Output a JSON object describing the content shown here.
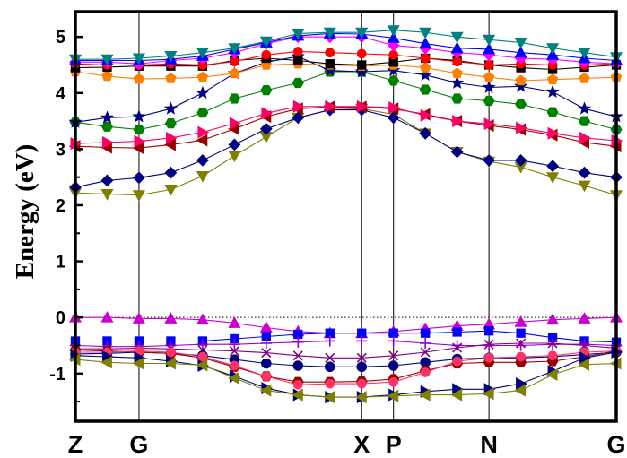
{
  "chart_data": {
    "type": "line",
    "ylabel": "Energy (eV)",
    "ylim": [
      -1.85,
      5.45
    ],
    "yticks": [
      -1,
      0,
      1,
      2,
      3,
      4,
      5
    ],
    "ytick_labels": [
      "-1",
      "0",
      "1",
      "2",
      "3",
      "4",
      "5"
    ],
    "k_points": [
      0,
      1,
      2,
      3,
      4,
      5,
      6,
      7,
      8,
      9,
      10,
      11,
      12,
      13,
      14,
      15,
      16,
      17
    ],
    "high_symmetry_points": [
      {
        "label": "Z",
        "k": 0
      },
      {
        "label": "G",
        "k": 2
      },
      {
        "label": "X",
        "k": 9
      },
      {
        "label": "P",
        "k": 10
      },
      {
        "label": "N",
        "k": 13
      },
      {
        "label": "G",
        "k": 17
      }
    ],
    "fermi_level": 0,
    "series": [
      {
        "marker": "tri-down",
        "color": "#808000",
        "values": [
          2.22,
          2.2,
          2.18,
          2.28,
          2.52,
          2.88,
          3.22,
          3.56,
          3.7,
          3.72,
          3.62,
          3.28,
          2.95,
          2.78,
          2.68,
          2.5,
          2.35,
          2.18
        ]
      },
      {
        "marker": "diamond",
        "color": "#000080",
        "values": [
          2.32,
          2.44,
          2.49,
          2.58,
          2.8,
          3.08,
          3.36,
          3.56,
          3.7,
          3.7,
          3.56,
          3.28,
          2.95,
          2.8,
          2.8,
          2.7,
          2.58,
          2.5
        ]
      },
      {
        "marker": "tri-left",
        "color": "#990000",
        "values": [
          3.05,
          3.03,
          3.02,
          3.08,
          3.16,
          3.36,
          3.58,
          3.72,
          3.75,
          3.75,
          3.72,
          3.62,
          3.5,
          3.42,
          3.35,
          3.25,
          3.12,
          3.05
        ]
      },
      {
        "marker": "tri-right",
        "color": "#ff0066",
        "values": [
          3.1,
          3.12,
          3.14,
          3.2,
          3.3,
          3.46,
          3.64,
          3.76,
          3.76,
          3.76,
          3.74,
          3.6,
          3.5,
          3.45,
          3.38,
          3.28,
          3.2,
          3.15
        ]
      },
      {
        "marker": "hexagon",
        "color": "#008000",
        "values": [
          3.48,
          3.4,
          3.35,
          3.46,
          3.65,
          3.9,
          4.05,
          4.18,
          4.38,
          4.38,
          4.22,
          4.06,
          3.9,
          3.86,
          3.8,
          3.66,
          3.5,
          3.35
        ]
      },
      {
        "marker": "star",
        "color": "#000080",
        "values": [
          3.48,
          3.56,
          3.58,
          3.72,
          4.0,
          4.35,
          4.55,
          4.65,
          4.4,
          4.38,
          4.4,
          4.32,
          4.18,
          4.1,
          4.12,
          4.02,
          3.72,
          3.58
        ]
      },
      {
        "marker": "pentagon",
        "color": "#ff8000",
        "values": [
          4.38,
          4.3,
          4.25,
          4.26,
          4.28,
          4.35,
          4.5,
          4.52,
          4.5,
          4.48,
          4.5,
          4.45,
          4.35,
          4.28,
          4.22,
          4.24,
          4.26,
          4.28
        ]
      },
      {
        "marker": "square",
        "color": "#000000",
        "values": [
          4.45,
          4.46,
          4.48,
          4.48,
          4.48,
          4.58,
          4.62,
          4.58,
          4.52,
          4.5,
          4.55,
          4.62,
          4.58,
          4.5,
          4.45,
          4.42,
          4.46,
          4.5
        ]
      },
      {
        "marker": "circle",
        "color": "#ff0000",
        "values": [
          4.52,
          4.5,
          4.5,
          4.52,
          4.5,
          4.56,
          4.68,
          4.74,
          4.72,
          4.7,
          4.68,
          4.62,
          4.56,
          4.5,
          4.52,
          4.5,
          4.5,
          4.52
        ]
      },
      {
        "marker": "diamond",
        "color": "#ff00ff",
        "values": [
          4.55,
          4.55,
          4.52,
          4.58,
          4.62,
          4.72,
          4.88,
          5.0,
          5.0,
          5.0,
          4.85,
          4.8,
          4.72,
          4.68,
          4.62,
          4.6,
          4.55,
          4.52
        ]
      },
      {
        "marker": "tri-up",
        "color": "#0000ff",
        "values": [
          4.58,
          4.58,
          4.58,
          4.6,
          4.66,
          4.78,
          4.9,
          5.02,
          5.06,
          5.05,
          4.98,
          4.88,
          4.8,
          4.78,
          4.72,
          4.68,
          4.62,
          4.58
        ]
      },
      {
        "marker": "tri-down",
        "color": "#008080",
        "values": [
          4.6,
          4.6,
          4.62,
          4.66,
          4.72,
          4.8,
          4.92,
          5.06,
          5.08,
          5.08,
          5.12,
          5.08,
          5.0,
          4.95,
          4.9,
          4.8,
          4.72,
          4.64
        ]
      },
      {
        "marker": "tri-up",
        "color": "#cc00cc",
        "values": [
          0.0,
          0.0,
          -0.02,
          -0.02,
          -0.04,
          -0.1,
          -0.18,
          -0.25,
          -0.28,
          -0.28,
          -0.25,
          -0.2,
          -0.15,
          -0.12,
          -0.08,
          -0.04,
          -0.02,
          0.0
        ]
      },
      {
        "marker": "square",
        "color": "#0000ff",
        "values": [
          -0.42,
          -0.42,
          -0.42,
          -0.42,
          -0.42,
          -0.38,
          -0.34,
          -0.3,
          -0.28,
          -0.28,
          -0.28,
          -0.28,
          -0.26,
          -0.24,
          -0.28,
          -0.36,
          -0.42,
          -0.44
        ]
      },
      {
        "marker": "cross",
        "color": "#9900cc",
        "values": [
          -0.5,
          -0.52,
          -0.52,
          -0.5,
          -0.48,
          -0.48,
          -0.46,
          -0.44,
          -0.42,
          -0.42,
          -0.42,
          -0.46,
          -0.5,
          -0.5,
          -0.5,
          -0.48,
          -0.48,
          -0.5
        ]
      },
      {
        "marker": "x",
        "color": "#800080",
        "values": [
          -0.56,
          -0.56,
          -0.55,
          -0.56,
          -0.58,
          -0.6,
          -0.63,
          -0.68,
          -0.72,
          -0.72,
          -0.68,
          -0.62,
          -0.54,
          -0.48,
          -0.46,
          -0.46,
          -0.5,
          -0.55
        ]
      },
      {
        "marker": "ball",
        "color": "#000080",
        "values": [
          -0.65,
          -0.64,
          -0.62,
          -0.64,
          -0.68,
          -0.75,
          -0.82,
          -0.86,
          -0.88,
          -0.88,
          -0.86,
          -0.8,
          -0.74,
          -0.72,
          -0.72,
          -0.7,
          -0.66,
          -0.62
        ]
      },
      {
        "marker": "hexagon",
        "color": "#990000",
        "values": [
          -0.58,
          -0.6,
          -0.62,
          -0.64,
          -0.72,
          -0.88,
          -1.05,
          -1.15,
          -1.15,
          -1.14,
          -1.1,
          -0.95,
          -0.82,
          -0.8,
          -0.8,
          -0.78,
          -0.7,
          -0.6
        ]
      },
      {
        "marker": "circle",
        "color": "#ff3366",
        "values": [
          -0.62,
          -0.62,
          -0.6,
          -0.62,
          -0.7,
          -0.86,
          -1.05,
          -1.2,
          -1.18,
          -1.18,
          -1.15,
          -0.98,
          -0.78,
          -0.72,
          -0.7,
          -0.68,
          -0.62,
          -0.6
        ]
      },
      {
        "marker": "tri-right",
        "color": "#000080",
        "values": [
          -0.68,
          -0.7,
          -0.72,
          -0.78,
          -0.86,
          -1.05,
          -1.26,
          -1.38,
          -1.42,
          -1.42,
          -1.38,
          -1.32,
          -1.28,
          -1.28,
          -1.18,
          -0.96,
          -0.72,
          -0.62
        ]
      },
      {
        "marker": "tri-left",
        "color": "#808000",
        "values": [
          -0.75,
          -0.8,
          -0.82,
          -0.82,
          -0.85,
          -1.08,
          -1.3,
          -1.38,
          -1.42,
          -1.42,
          -1.4,
          -1.38,
          -1.38,
          -1.36,
          -1.3,
          -1.02,
          -0.84,
          -0.82
        ]
      }
    ]
  }
}
